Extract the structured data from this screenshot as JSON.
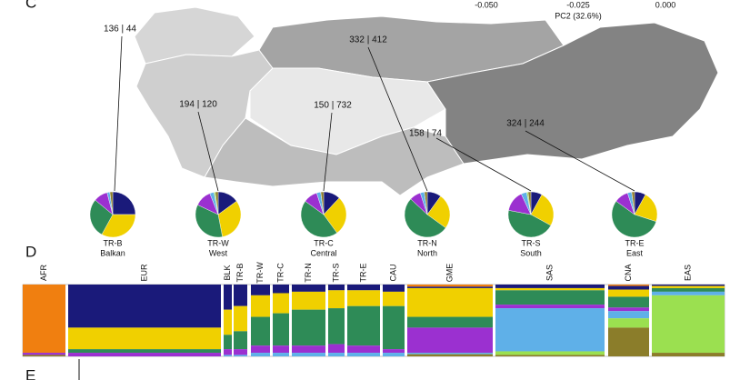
{
  "panel_c": {
    "label": "C",
    "axis_ticks": [
      "-0.050",
      "-0.025",
      "0.000"
    ],
    "axis_label": "PC2 (32.6%)",
    "map_labels": [
      "136 | 44",
      "194 | 120",
      "150 | 732",
      "332 | 412",
      "158 | 74",
      "324 | 244"
    ],
    "pies": {
      "colors": [
        "#f07f10",
        "#1a1a7a",
        "#f0d000",
        "#2e8b57",
        "#9b30d0",
        "#5fb0e8",
        "#9be050",
        "#8b7d2a"
      ],
      "items": [
        {
          "code": "TR-B",
          "region": "Balkan",
          "values": [
            0,
            25,
            33,
            28,
            10,
            2,
            0,
            2
          ]
        },
        {
          "code": "TR-W",
          "region": "West",
          "values": [
            0,
            15,
            32,
            35,
            12,
            3,
            1,
            2
          ]
        },
        {
          "code": "TR-C",
          "region": "Central",
          "values": [
            0,
            12,
            28,
            45,
            10,
            3,
            0,
            2
          ]
        },
        {
          "code": "TR-N",
          "region": "North",
          "values": [
            0,
            10,
            25,
            52,
            8,
            3,
            0,
            2
          ]
        },
        {
          "code": "TR-S",
          "region": "South",
          "values": [
            0,
            8,
            25,
            45,
            15,
            4,
            1,
            2
          ]
        },
        {
          "code": "TR-E",
          "region": "East",
          "values": [
            0,
            8,
            22,
            55,
            10,
            3,
            0,
            2
          ]
        }
      ]
    }
  },
  "panel_d": {
    "label": "D",
    "groups": [
      {
        "name": "AFR",
        "values": [
          95,
          0,
          0,
          0,
          3,
          0,
          0,
          2
        ]
      },
      {
        "name": "EUR",
        "values": [
          0,
          60,
          30,
          5,
          5,
          0,
          0,
          0
        ]
      },
      {
        "name": "BLK",
        "values": [
          0,
          35,
          35,
          20,
          8,
          2,
          0,
          0
        ]
      },
      {
        "name": "TR-B",
        "values": [
          0,
          30,
          35,
          25,
          8,
          2,
          0,
          0
        ]
      },
      {
        "name": "TR-W",
        "values": [
          0,
          15,
          30,
          40,
          10,
          5,
          0,
          0
        ]
      },
      {
        "name": "TR-C",
        "values": [
          0,
          12,
          28,
          45,
          10,
          5,
          0,
          0
        ]
      },
      {
        "name": "TR-N",
        "values": [
          0,
          10,
          25,
          50,
          10,
          5,
          0,
          0
        ]
      },
      {
        "name": "TR-S",
        "values": [
          0,
          8,
          25,
          50,
          12,
          5,
          0,
          0
        ]
      },
      {
        "name": "TR-E",
        "values": [
          0,
          8,
          22,
          55,
          10,
          5,
          0,
          0
        ]
      },
      {
        "name": "CAU",
        "values": [
          0,
          10,
          20,
          60,
          5,
          5,
          0,
          0
        ]
      },
      {
        "name": "GME",
        "values": [
          3,
          2,
          40,
          15,
          35,
          2,
          0,
          3
        ]
      },
      {
        "name": "SAS",
        "values": [
          0,
          5,
          3,
          20,
          5,
          60,
          5,
          2
        ]
      },
      {
        "name": "CNA",
        "values": [
          2,
          5,
          10,
          15,
          5,
          10,
          13,
          40
        ]
      },
      {
        "name": "EAS",
        "values": [
          0,
          2,
          3,
          5,
          0,
          5,
          80,
          5
        ]
      }
    ]
  },
  "panel_e": {
    "label": "E"
  }
}
